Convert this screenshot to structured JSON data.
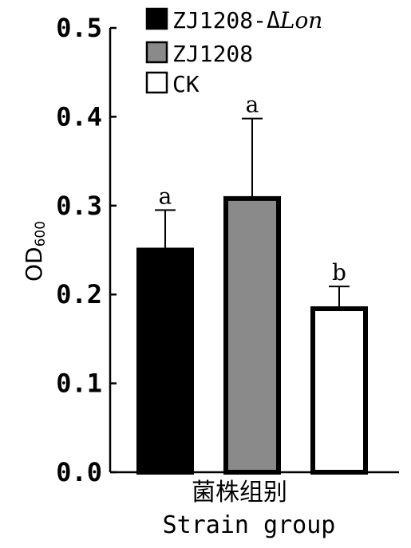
{
  "chart_data": {
    "type": "bar",
    "categories": [
      "ZJ1208-ΔLon",
      "ZJ1208",
      "CK"
    ],
    "values": [
      0.25,
      0.308,
      0.184
    ],
    "errors": [
      0.045,
      0.09,
      0.025
    ],
    "significance": [
      "a",
      "a",
      "b"
    ],
    "fill_colors": [
      "#000000",
      "#8a8a8a",
      "#ffffff"
    ],
    "ylabel_main": "OD",
    "ylabel_sub": "600",
    "xlabel_cn": "菌株组别",
    "xlabel_en": "Strain group",
    "ylim": [
      0,
      0.5
    ],
    "yticks": [
      "0.0",
      "0.1",
      "0.2",
      "0.3",
      "0.4",
      "0.5"
    ],
    "legend": [
      {
        "label": "ZJ1208-Δ",
        "label_italic": "Lon",
        "color": "#000000"
      },
      {
        "label": "ZJ1208",
        "label_italic": "",
        "color": "#8a8a8a"
      },
      {
        "label": "CK",
        "label_italic": "",
        "color": "#ffffff"
      }
    ],
    "legend_position": "top",
    "grid": false
  }
}
